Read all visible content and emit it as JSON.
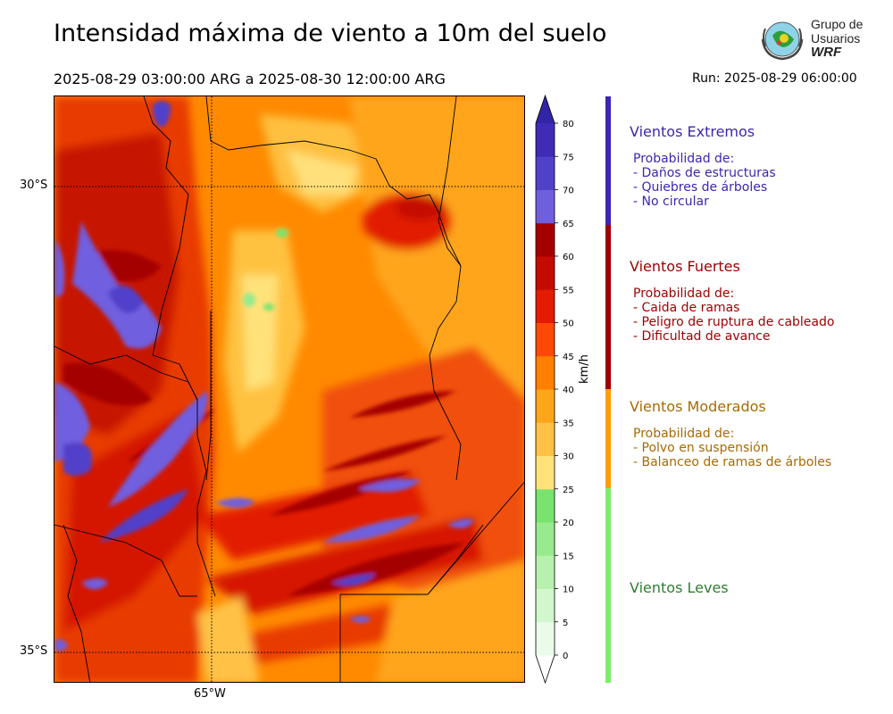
{
  "title": "Intensidad máxima de viento a 10m del suelo",
  "period": "2025-08-29 03:00:00 ARG  a  2025-08-30 12:00:00 ARG",
  "run": "Run: 2025-08-29 06:00:00",
  "logo": {
    "line1": "Grupo de",
    "line2": "Usuarios",
    "line3": "WRF",
    "icon": "globe-emblem-icon"
  },
  "map": {
    "lat_labels": [
      "30°S",
      "35°S"
    ],
    "lon_labels": [
      "65°W"
    ]
  },
  "colorbar": {
    "unit": "km/h",
    "ticks": [
      "0",
      "5",
      "10",
      "15",
      "20",
      "25",
      "30",
      "35",
      "40",
      "45",
      "50",
      "55",
      "60",
      "65",
      "70",
      "75",
      "80"
    ],
    "colors": [
      "#eafbe9",
      "#d2f6cd",
      "#b7f1ad",
      "#98ea8e",
      "#78e46e",
      "#ffe27a",
      "#ffc247",
      "#ffa51b",
      "#ff7f00",
      "#fc4a06",
      "#e21c00",
      "#c30b00",
      "#a50000",
      "#6f5fdf",
      "#5141c9",
      "#3f2bb5"
    ],
    "under_color": "#ffffff",
    "over_color": "#3224a6"
  },
  "categories": [
    {
      "name": "Vientos Extremos",
      "color": "#3b27b0",
      "heading": "Probabilidad de:",
      "items": [
        "- Daños de estructuras",
        "- Quiebres de árboles",
        "- No circular"
      ]
    },
    {
      "name": "Vientos Fuertes",
      "color": "#9e0000",
      "heading": "Probabilidad de:",
      "items": [
        "- Caida de ramas",
        "- Peligro de ruptura de cableado",
        "- Dificultad de avance"
      ]
    },
    {
      "name": "Vientos Moderados",
      "color": "#a86a00",
      "heading": "Probabilidad de:",
      "items": [
        "- Polvo en suspensión",
        "- Balanceo de ramas de árboles"
      ]
    },
    {
      "name": "Vientos Leves",
      "color": "#2e7d32",
      "heading": "",
      "items": []
    }
  ],
  "bars": [
    "#3b27b0",
    "#9e0000",
    "#ff9e00",
    "#7ced6a"
  ]
}
